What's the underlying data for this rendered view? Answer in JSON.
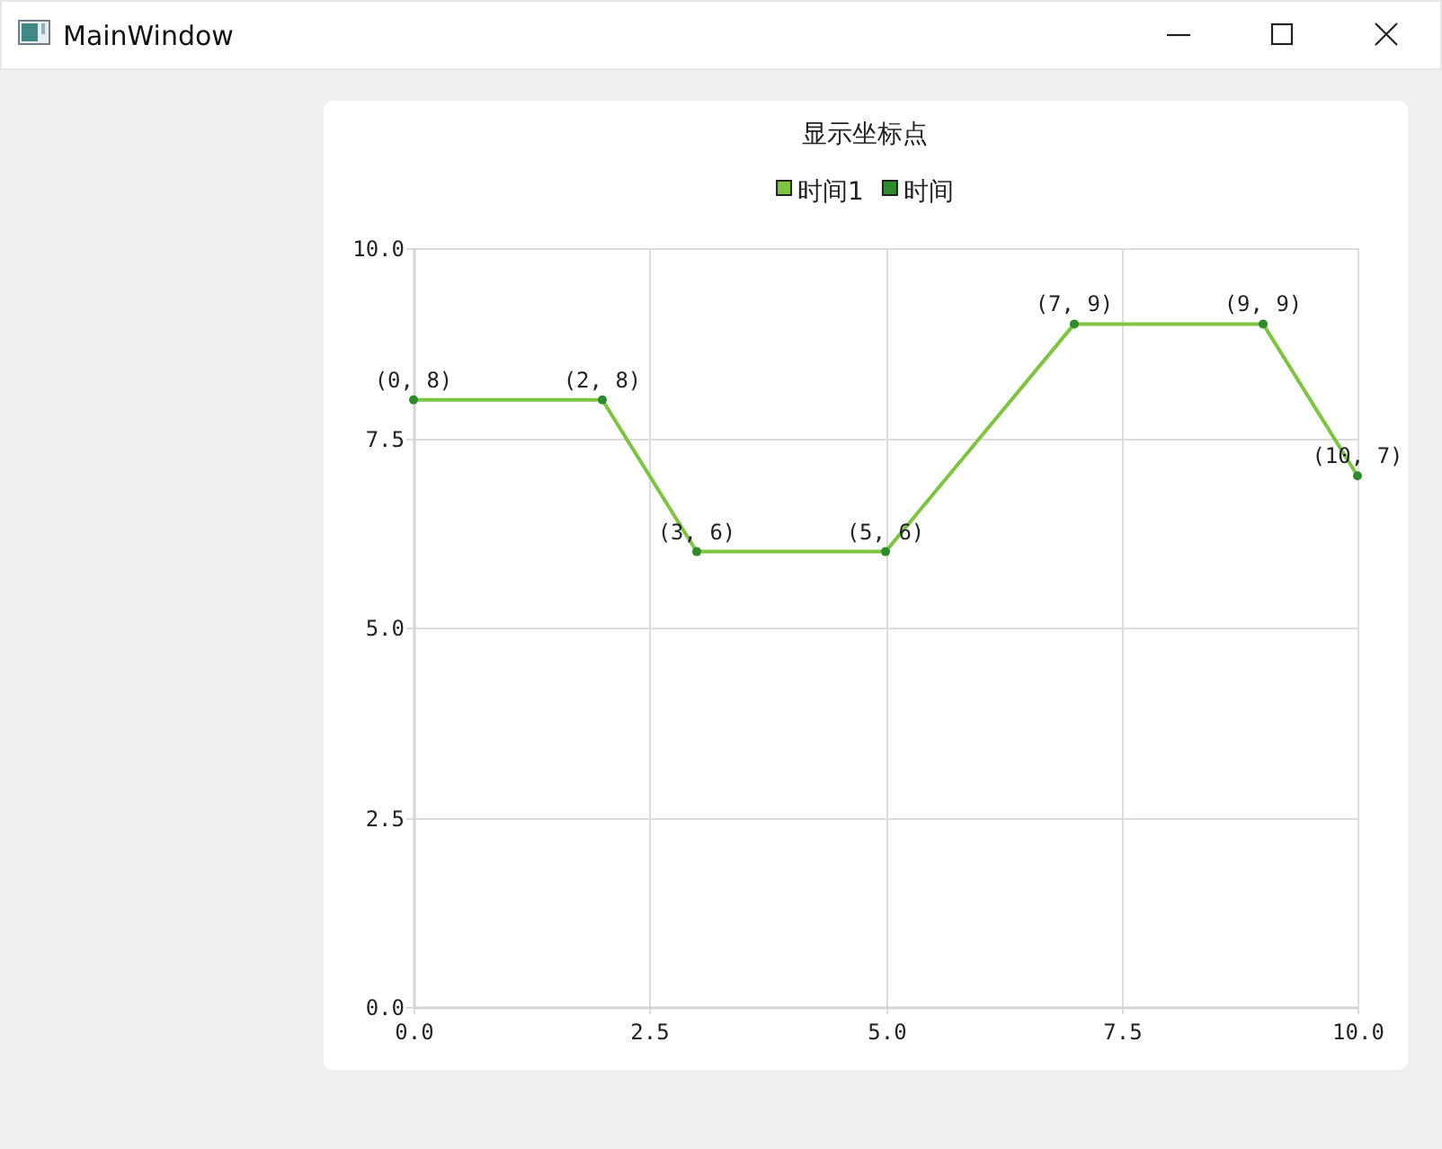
{
  "chart_data": {
    "type": "line",
    "title": "显示坐标点",
    "annotations": [
      "MainWindow"
    ],
    "x": [
      0,
      2,
      3,
      5,
      7,
      9,
      10
    ],
    "series": [
      {
        "name": "时间1",
        "color": "#7dc43f",
        "values": [
          8,
          8,
          6,
          6,
          9,
          9,
          7
        ],
        "value_labels": [
          "(0, 8)",
          "(2, 8)",
          "(3, 6)",
          "(5, 6)",
          "(7, 9)",
          "(9, 9)",
          "(10, 7)"
        ]
      },
      {
        "name": "时间",
        "type": "scatter",
        "marker": "circle",
        "color": "#2e8b2e",
        "values": [
          8,
          8,
          6,
          6,
          9,
          9,
          7
        ]
      }
    ],
    "xlim": [
      0,
      10
    ],
    "ylim": [
      0,
      10
    ],
    "xticks": [
      {
        "value": 0,
        "label": "0.0"
      },
      {
        "value": 2.5,
        "label": "2.5"
      },
      {
        "value": 5,
        "label": "5.0"
      },
      {
        "value": 7.5,
        "label": "7.5"
      },
      {
        "value": 10,
        "label": "10.0"
      }
    ],
    "yticks": [
      {
        "value": 0,
        "label": "0.0"
      },
      {
        "value": 2.5,
        "label": "2.5"
      },
      {
        "value": 5,
        "label": "5.0"
      },
      {
        "value": 7.5,
        "label": "7.5"
      },
      {
        "value": 10,
        "label": "10.0"
      }
    ],
    "grid": true,
    "legend": "top"
  }
}
